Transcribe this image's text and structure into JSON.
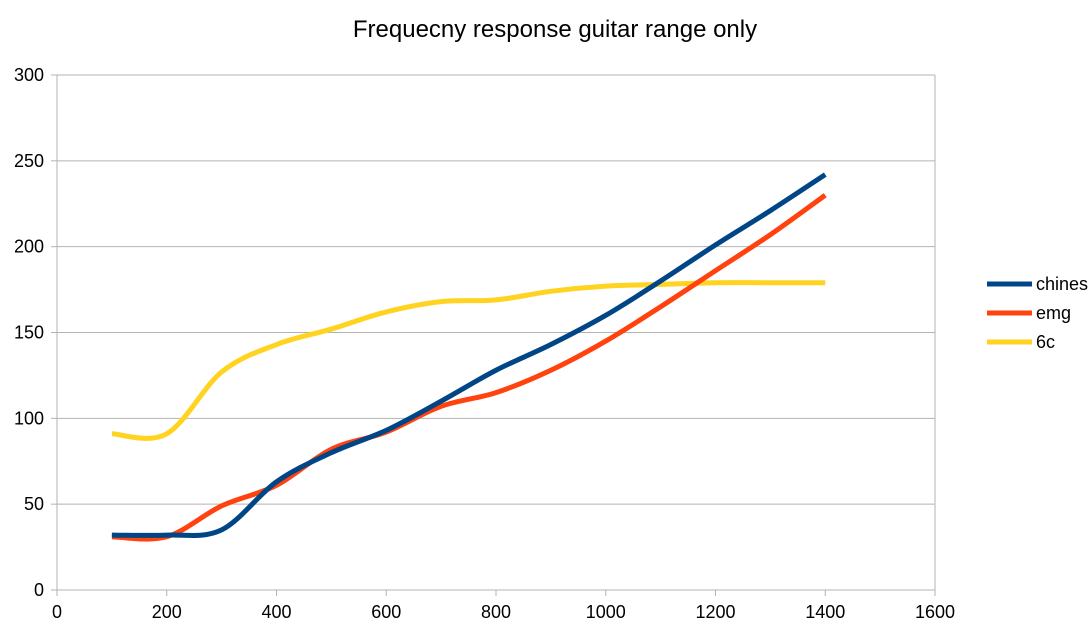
{
  "chart_data": {
    "type": "line",
    "title": "Frequecny response guitar range only",
    "xlabel": "",
    "ylabel": "",
    "xlim": [
      0,
      1600
    ],
    "ylim": [
      0,
      300
    ],
    "x_ticks": [
      0,
      200,
      400,
      600,
      800,
      1000,
      1200,
      1400,
      1600
    ],
    "y_ticks": [
      0,
      50,
      100,
      150,
      200,
      250,
      300
    ],
    "x_tick_labels": [
      "0",
      "200",
      "400",
      "600",
      "800",
      "1000",
      "1200",
      "1400",
      "1600"
    ],
    "y_tick_labels": [
      "0",
      "50",
      "100",
      "150",
      "200",
      "250",
      "300"
    ],
    "grid": "horizontal",
    "legend_position": "right",
    "smooth": true,
    "x": [
      100,
      200,
      300,
      400,
      500,
      600,
      700,
      800,
      900,
      1000,
      1100,
      1200,
      1300,
      1400
    ],
    "series": [
      {
        "name": "chines",
        "color": "#004586",
        "values": [
          32,
          32,
          35,
          63,
          80,
          93,
          110,
          128,
          143,
          160,
          180,
          201,
          221,
          242
        ]
      },
      {
        "name": "emg",
        "color": "#ff420e",
        "values": [
          31,
          31,
          49,
          61,
          82,
          92,
          107,
          115,
          128,
          145,
          165,
          186,
          207,
          230
        ]
      },
      {
        "name": "6c",
        "color": "#ffd320",
        "values": [
          91,
          91,
          127,
          143,
          152,
          162,
          168,
          169,
          174,
          177,
          178,
          179,
          179,
          179
        ]
      }
    ]
  }
}
